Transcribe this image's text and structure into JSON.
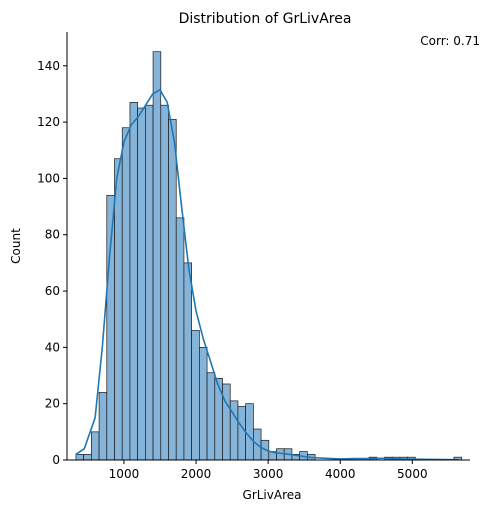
{
  "chart_data": {
    "type": "bar",
    "title": "Distribution of GrLivArea",
    "xlabel": "GrLivArea",
    "ylabel": "Count",
    "annotation": "Corr: 0.71",
    "xlim": [
      210,
      5800
    ],
    "ylim": [
      0,
      152
    ],
    "xticks": [
      1000,
      2000,
      3000,
      4000,
      5000
    ],
    "yticks": [
      0,
      20,
      40,
      60,
      80,
      100,
      120,
      140
    ],
    "bin_start": 334,
    "bin_width": 107,
    "counts": [
      2,
      2,
      10,
      24,
      94,
      107,
      118,
      127,
      125,
      126,
      145,
      126,
      121,
      86,
      70,
      46,
      40,
      31,
      29,
      27,
      21,
      19,
      20,
      11,
      7,
      3,
      4,
      4,
      2,
      3,
      2,
      0,
      0,
      0,
      0,
      0,
      0,
      0,
      1,
      0,
      1,
      1,
      1,
      1,
      0,
      0,
      0,
      0,
      0,
      1
    ],
    "kde": [
      [
        334,
        2
      ],
      [
        450,
        4
      ],
      [
        600,
        15
      ],
      [
        700,
        40
      ],
      [
        800,
        72
      ],
      [
        900,
        100
      ],
      [
        1000,
        113
      ],
      [
        1100,
        119
      ],
      [
        1200,
        122
      ],
      [
        1300,
        126
      ],
      [
        1400,
        130
      ],
      [
        1500,
        131.5
      ],
      [
        1600,
        127
      ],
      [
        1700,
        113
      ],
      [
        1800,
        90
      ],
      [
        1900,
        68
      ],
      [
        2000,
        53
      ],
      [
        2100,
        43
      ],
      [
        2200,
        35
      ],
      [
        2300,
        27
      ],
      [
        2400,
        21
      ],
      [
        2500,
        17
      ],
      [
        2600,
        13
      ],
      [
        2700,
        9.5
      ],
      [
        2800,
        6.5
      ],
      [
        2900,
        4.5
      ],
      [
        3000,
        3.2
      ],
      [
        3100,
        2.6
      ],
      [
        3200,
        2.3
      ],
      [
        3300,
        2
      ],
      [
        3400,
        1.6
      ],
      [
        3500,
        1.2
      ],
      [
        3600,
        0.9
      ],
      [
        3800,
        0.6
      ],
      [
        4000,
        0.4
      ],
      [
        4200,
        0.5
      ],
      [
        4400,
        0.5
      ],
      [
        4600,
        0.6
      ],
      [
        4800,
        0.4
      ],
      [
        5000,
        0.3
      ],
      [
        5300,
        0.2
      ],
      [
        5642,
        0.1
      ]
    ],
    "bar_color": "#86b4d9",
    "edge_color": "#1a1a1a",
    "kde_color": "#1f77b4",
    "grid": false,
    "legend": "none"
  }
}
